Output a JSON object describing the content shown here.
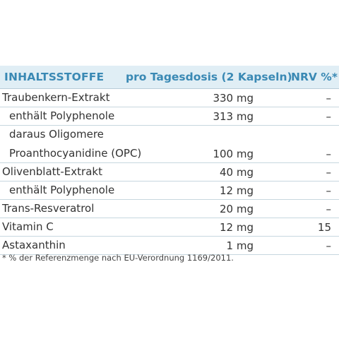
{
  "header": {
    "ingredients": "INHALTSSTOFFE",
    "dose": "pro Tagesdosis (2 Kapseln)",
    "nrv": "NRV %*"
  },
  "rows": [
    {
      "name": "Traubenkern-Extrakt",
      "dose": "330 mg",
      "nrv": "–"
    },
    {
      "name": "enthält Polyphenole",
      "dose": "313 mg",
      "nrv": "–"
    },
    {
      "name": "daraus Oligomere\nProanthocyanidine (OPC)",
      "dose": "100 mg",
      "nrv": "–"
    },
    {
      "name": "Olivenblatt-Extrakt",
      "dose": "40 mg",
      "nrv": "–"
    },
    {
      "name": "enthält Polyphenole",
      "dose": "12 mg",
      "nrv": "–"
    },
    {
      "name": "Trans-Resveratrol",
      "dose": "20 mg",
      "nrv": "–"
    },
    {
      "name": "Vitamin C",
      "dose": "12 mg",
      "nrv": "15"
    },
    {
      "name": "Astaxanthin",
      "dose": "1 mg",
      "nrv": "–"
    }
  ],
  "footnote": "* % der Referenzmenge nach EU-Verordnung 1169/2011."
}
